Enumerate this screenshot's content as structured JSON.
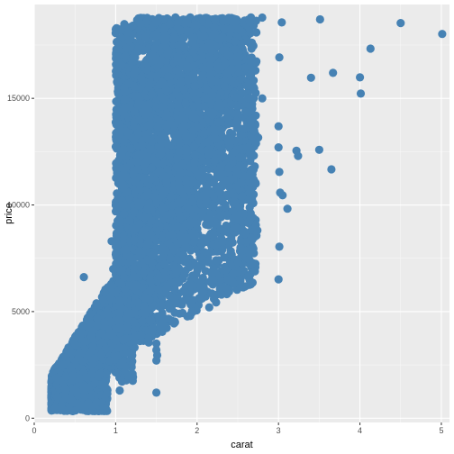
{
  "chart_data": {
    "type": "scatter",
    "title": "",
    "xlabel": "carat",
    "ylabel": "price",
    "xlim": [
      0,
      5.1
    ],
    "ylim": [
      -200,
      19400
    ],
    "x_ticks": [
      0,
      1,
      2,
      3,
      4,
      5
    ],
    "x_tick_labels": [
      "0",
      "1",
      "2",
      "3",
      "4",
      "5"
    ],
    "y_ticks": [
      0,
      5000,
      10000,
      15000
    ],
    "y_tick_labels": [
      "0",
      "5000",
      "10000",
      "15000"
    ],
    "grid": true,
    "legend": "none",
    "colors": {
      "panel_bg": "#EBEBEB",
      "grid_major": "#FFFFFF",
      "point": "#4682B4"
    },
    "outlier_points": [
      {
        "x": 5.01,
        "y": 18018
      },
      {
        "x": 4.5,
        "y": 18531
      },
      {
        "x": 4.13,
        "y": 17329
      },
      {
        "x": 4.01,
        "y": 15223
      },
      {
        "x": 4.0,
        "y": 15984
      },
      {
        "x": 3.67,
        "y": 16193
      },
      {
        "x": 3.65,
        "y": 11668
      },
      {
        "x": 3.51,
        "y": 18701
      },
      {
        "x": 3.5,
        "y": 12587
      },
      {
        "x": 3.4,
        "y": 15964
      },
      {
        "x": 3.24,
        "y": 12300
      },
      {
        "x": 3.22,
        "y": 12545
      },
      {
        "x": 3.11,
        "y": 9823
      },
      {
        "x": 3.05,
        "y": 10453
      },
      {
        "x": 3.04,
        "y": 18559
      },
      {
        "x": 3.02,
        "y": 10577
      },
      {
        "x": 3.01,
        "y": 16919
      },
      {
        "x": 3.01,
        "y": 8040
      },
      {
        "x": 3.0,
        "y": 6512
      },
      {
        "x": 3.01,
        "y": 11548
      },
      {
        "x": 3.0,
        "y": 13691
      },
      {
        "x": 3.0,
        "y": 12700
      },
      {
        "x": 2.8,
        "y": 18788
      },
      {
        "x": 2.8,
        "y": 15000
      },
      {
        "x": 2.75,
        "y": 13156
      },
      {
        "x": 2.74,
        "y": 8807
      },
      {
        "x": 2.72,
        "y": 11000
      },
      {
        "x": 2.71,
        "y": 6884
      },
      {
        "x": 2.66,
        "y": 14000
      },
      {
        "x": 2.55,
        "y": 10400
      },
      {
        "x": 2.5,
        "y": 7300
      },
      {
        "x": 2.48,
        "y": 9500
      },
      {
        "x": 2.45,
        "y": 6300
      },
      {
        "x": 2.42,
        "y": 11200
      },
      {
        "x": 2.4,
        "y": 12800
      },
      {
        "x": 2.35,
        "y": 9900
      },
      {
        "x": 2.31,
        "y": 7900
      },
      {
        "x": 2.3,
        "y": 5800
      },
      {
        "x": 2.2,
        "y": 6500
      },
      {
        "x": 2.15,
        "y": 5200
      },
      {
        "x": 2.05,
        "y": 5600
      },
      {
        "x": 1.95,
        "y": 5000
      },
      {
        "x": 1.85,
        "y": 5900
      },
      {
        "x": 0.61,
        "y": 6617
      },
      {
        "x": 0.9,
        "y": 4900
      },
      {
        "x": 1.08,
        "y": 11000
      },
      {
        "x": 1.1,
        "y": 12600
      },
      {
        "x": 1.05,
        "y": 1300
      },
      {
        "x": 1.5,
        "y": 1200
      },
      {
        "x": 1.5,
        "y": 3500
      },
      {
        "x": 1.5,
        "y": 2700
      },
      {
        "x": 1.5,
        "y": 3200
      },
      {
        "x": 1.0,
        "y": 10000
      },
      {
        "x": 0.95,
        "y": 8300
      },
      {
        "x": 0.97,
        "y": 7000
      },
      {
        "x": 1.51,
        "y": 2950
      }
    ]
  }
}
